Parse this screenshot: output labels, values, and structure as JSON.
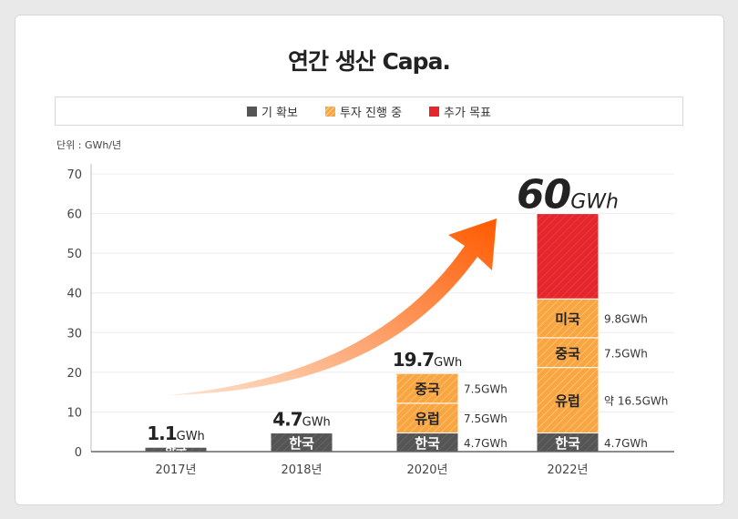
{
  "title": "연간 생산 Capa.",
  "unit_label": "단위 : GWh/년",
  "colors": {
    "existing": "#555555",
    "investing": "#f9a540",
    "target": "#e5262c",
    "arrow_start": "#fde3cf",
    "arrow_end": "#ff5a00"
  },
  "chart_data": {
    "type": "bar",
    "stacked": true,
    "ylim": [
      0,
      70
    ],
    "yticks": [
      0,
      10,
      20,
      30,
      40,
      50,
      60,
      70
    ],
    "grid": true,
    "legend_position": "top",
    "legend": [
      {
        "key": "existing",
        "label": "기 확보"
      },
      {
        "key": "investing",
        "label": "투자 진행 중"
      },
      {
        "key": "target",
        "label": "추가 목표"
      }
    ],
    "categories": [
      "2017년",
      "2018년",
      "2020년",
      "2022년"
    ],
    "bars": [
      {
        "total": "1.1",
        "total_unit": "GWh",
        "segments": [
          {
            "label": "한국",
            "value": 1.1,
            "type": "existing",
            "value_label": ""
          }
        ]
      },
      {
        "total": "4.7",
        "total_unit": "GWh",
        "segments": [
          {
            "label": "한국",
            "value": 4.7,
            "type": "existing",
            "value_label": ""
          }
        ]
      },
      {
        "total": "19.7",
        "total_unit": "GWh",
        "segments": [
          {
            "label": "한국",
            "value": 4.7,
            "type": "existing",
            "value_label": "4.7GWh"
          },
          {
            "label": "유럽",
            "value": 7.5,
            "type": "investing",
            "value_label": "7.5GWh"
          },
          {
            "label": "중국",
            "value": 7.5,
            "type": "investing",
            "value_label": "7.5GWh"
          }
        ]
      },
      {
        "total": "60",
        "total_unit": "GWh",
        "segments": [
          {
            "label": "한국",
            "value": 4.7,
            "type": "existing",
            "value_label": "4.7GWh"
          },
          {
            "label": "유럽",
            "value": 16.5,
            "type": "investing",
            "value_label": "약 16.5GWh"
          },
          {
            "label": "중국",
            "value": 7.5,
            "type": "investing",
            "value_label": "7.5GWh"
          },
          {
            "label": "미국",
            "value": 9.8,
            "type": "investing",
            "value_label": "9.8GWh"
          },
          {
            "label": "",
            "value": 21.5,
            "type": "target",
            "value_label": ""
          }
        ]
      }
    ]
  }
}
